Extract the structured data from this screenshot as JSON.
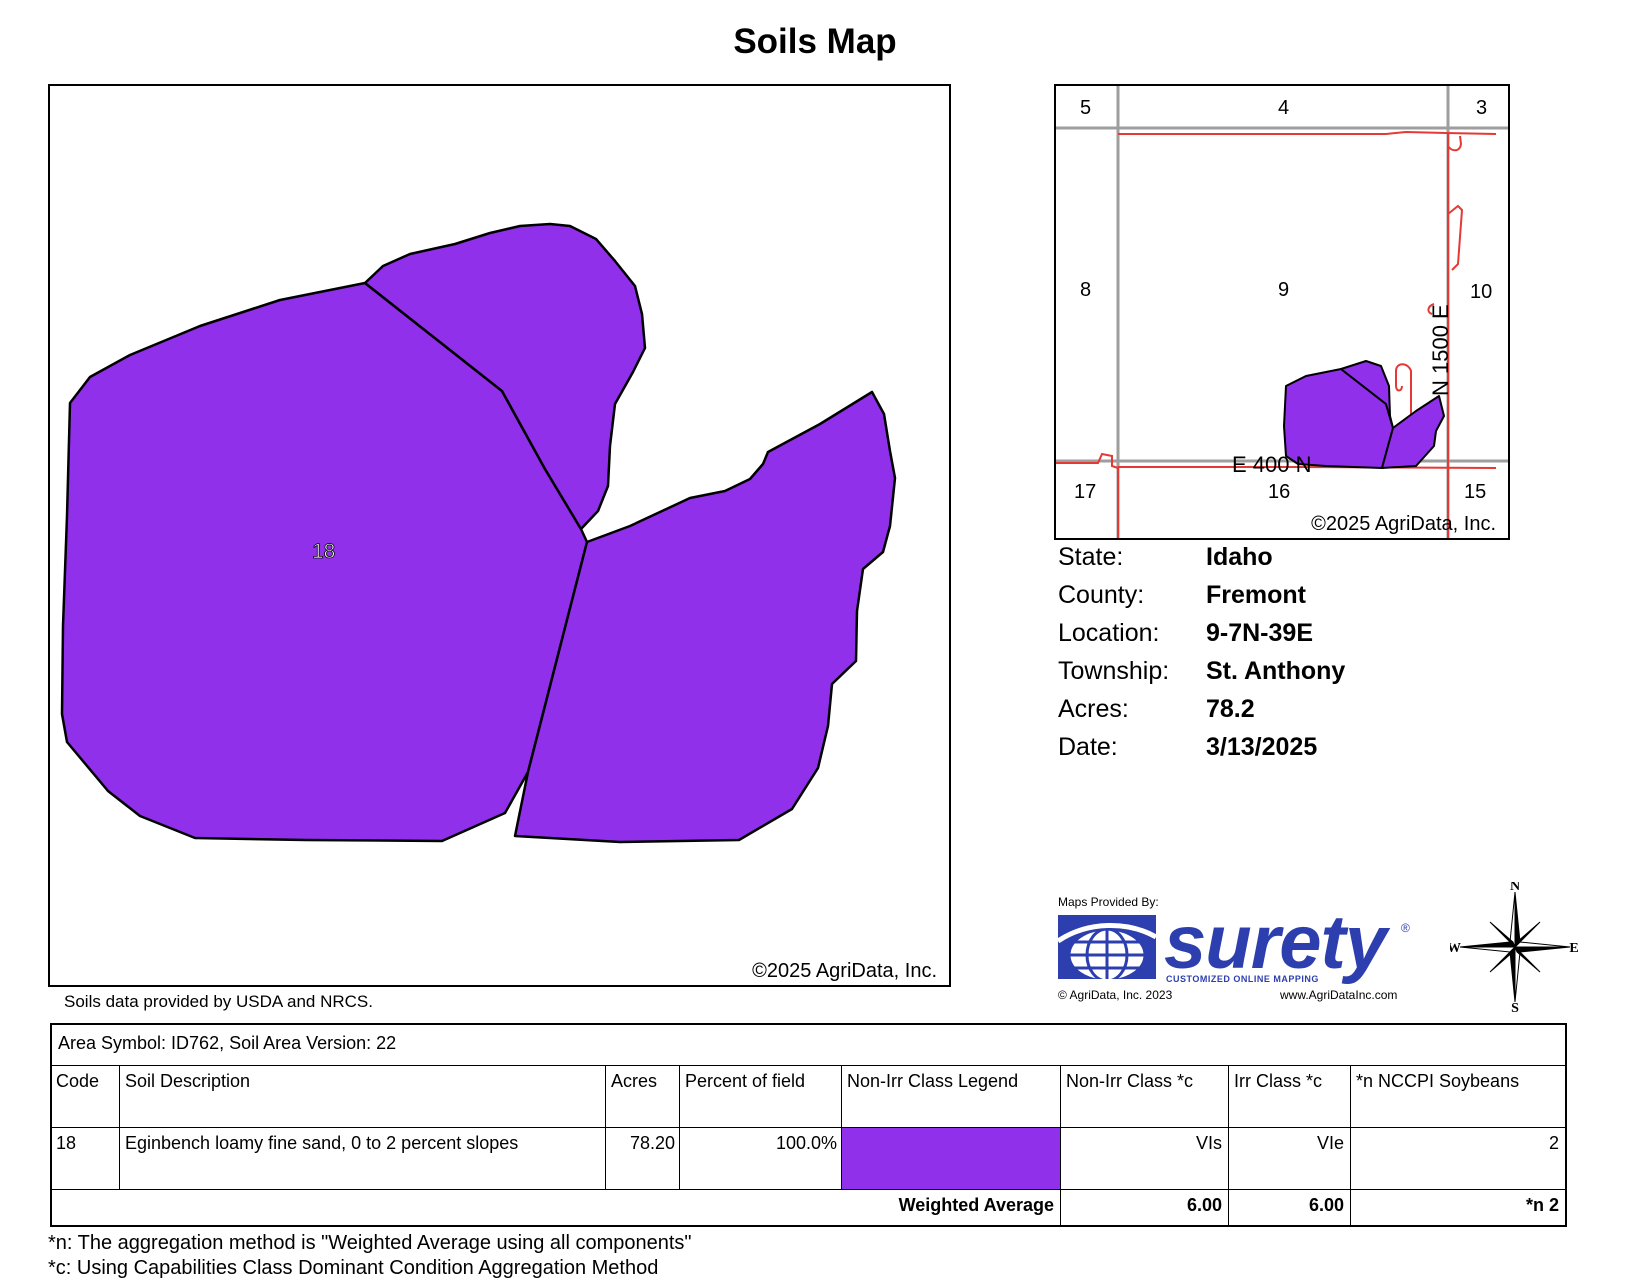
{
  "title": "Soils Map",
  "main_map": {
    "copyright": "©2025 AgriData, Inc.",
    "soil_label": "18",
    "soil_color": "#9130ea"
  },
  "soils_source": "Soils data provided by USDA and NRCS.",
  "locator_map": {
    "sections": [
      "5",
      "4",
      "3",
      "8",
      "9",
      "10",
      "17",
      "16",
      "15"
    ],
    "road_e": "E 400 N",
    "road_n": "N 1500 E",
    "copyright": "©2025 AgriData, Inc.",
    "road_color": "#e53935",
    "grid_color": "#9e9e9e"
  },
  "info": [
    {
      "key": "State:",
      "value": "Idaho"
    },
    {
      "key": "County:",
      "value": "Fremont"
    },
    {
      "key": "Location:",
      "value": "9-7N-39E"
    },
    {
      "key": "Township:",
      "value": "St. Anthony"
    },
    {
      "key": "Acres:",
      "value": "78.2"
    },
    {
      "key": "Date:",
      "value": "3/13/2025"
    }
  ],
  "logo": {
    "provided_by": "Maps Provided By:",
    "wordmark": "surety",
    "registered": "®",
    "tagline": "CUSTOMIZED ONLINE MAPPING",
    "copyright": "© AgriData, Inc. 2023",
    "url": "www.AgriDataInc.com",
    "color": "#2d3fae"
  },
  "compass": {
    "n": "N",
    "s": "S",
    "e": "E",
    "w": "W"
  },
  "table": {
    "area_symbol": "Area Symbol: ID762, Soil Area Version: 22",
    "headers": [
      "Code",
      "Soil Description",
      "Acres",
      "Percent of field",
      "Non-Irr Class Legend",
      "Non-Irr Class *c",
      "Irr Class *c",
      "*n NCCPI Soybeans"
    ],
    "row": {
      "code": "18",
      "description": "Eginbench loamy fine sand, 0 to 2 percent slopes",
      "acres": "78.20",
      "percent": "100.0%",
      "legend_color": "#9130ea",
      "non_irr_class": "VIs",
      "irr_class": "VIe",
      "nccpi": "2"
    },
    "weighted": {
      "label": "Weighted Average",
      "non_irr": "6.00",
      "irr": "6.00",
      "nccpi": "*n 2"
    }
  },
  "footnotes": [
    "*n: The aggregation method is \"Weighted Average using all components\"",
    "*c: Using Capabilities Class Dominant Condition Aggregation Method"
  ]
}
